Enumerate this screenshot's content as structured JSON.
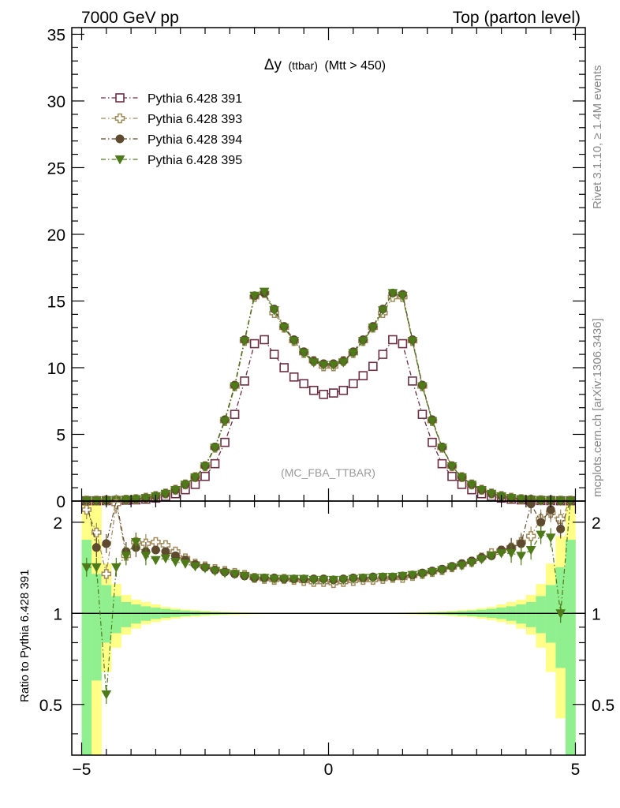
{
  "header": {
    "left": "7000 GeV pp",
    "right": "Top (parton level)"
  },
  "side_text": {
    "upper": "Rivet 3.1.10, ≥ 1.4M events",
    "lower": "mcplots.cern.ch [arXiv:1306.3436]"
  },
  "chart_data": [
    {
      "type": "line",
      "title": "Δy (ttbar) (Mtt > 450)",
      "title_main": "Δy",
      "title_small": "(ttbar)",
      "title_rest": "(Mtt > 450)",
      "watermark": "(MC_FBA_TTBAR)",
      "xlim": [
        -5.2,
        5.2
      ],
      "ylim": [
        0,
        35.5
      ],
      "yticks": [
        0,
        5,
        10,
        15,
        20,
        25,
        30,
        35
      ],
      "ytick_labels": [
        "0",
        "5",
        "10",
        "15",
        "20",
        "25",
        "30",
        "35"
      ],
      "legend_position": "top-left",
      "x": [
        -4.9,
        -4.7,
        -4.5,
        -4.3,
        -4.1,
        -3.9,
        -3.7,
        -3.5,
        -3.3,
        -3.1,
        -2.9,
        -2.7,
        -2.5,
        -2.3,
        -2.1,
        -1.9,
        -1.7,
        -1.5,
        -1.3,
        -1.1,
        -0.9,
        -0.7,
        -0.5,
        -0.3,
        -0.1,
        0.1,
        0.3,
        0.5,
        0.7,
        0.9,
        1.1,
        1.3,
        1.5,
        1.7,
        1.9,
        2.1,
        2.3,
        2.5,
        2.7,
        2.9,
        3.1,
        3.3,
        3.5,
        3.7,
        3.9,
        4.1,
        4.3,
        4.5,
        4.7,
        4.9
      ],
      "series": [
        {
          "name": "Pythia 6.428 391",
          "color": "#6b2f45",
          "marker": "open-square",
          "values": [
            0.02,
            0.02,
            0.03,
            0.04,
            0.06,
            0.09,
            0.14,
            0.22,
            0.35,
            0.55,
            0.85,
            1.25,
            1.85,
            2.8,
            4.4,
            6.5,
            9.0,
            11.8,
            12.1,
            11.0,
            10.0,
            9.3,
            8.8,
            8.3,
            8.0,
            8.1,
            8.3,
            8.8,
            9.4,
            10.1,
            11.0,
            12.1,
            11.8,
            9.0,
            6.5,
            4.4,
            2.8,
            1.85,
            1.25,
            0.85,
            0.55,
            0.35,
            0.22,
            0.14,
            0.09,
            0.06,
            0.04,
            0.03,
            0.02,
            0.02
          ]
        },
        {
          "name": "Pythia 6.428 393",
          "color": "#a08a5a",
          "marker": "open-cross",
          "values": [
            0.04,
            0.04,
            0.05,
            0.07,
            0.1,
            0.15,
            0.25,
            0.38,
            0.57,
            0.85,
            1.25,
            1.8,
            2.6,
            4.0,
            6.0,
            8.6,
            12.0,
            15.3,
            15.6,
            14.1,
            13.0,
            12.0,
            11.1,
            10.5,
            10.1,
            10.1,
            10.5,
            11.1,
            12.0,
            13.0,
            14.1,
            15.3,
            15.3,
            12.0,
            8.6,
            6.0,
            4.0,
            2.6,
            1.8,
            1.25,
            0.85,
            0.57,
            0.38,
            0.25,
            0.15,
            0.1,
            0.07,
            0.05,
            0.04,
            0.04
          ]
        },
        {
          "name": "Pythia 6.428 394",
          "color": "#5e4a2e",
          "marker": "filled-circle",
          "values": [
            0.03,
            0.03,
            0.05,
            0.07,
            0.1,
            0.15,
            0.24,
            0.37,
            0.56,
            0.84,
            1.25,
            1.8,
            2.65,
            4.05,
            6.1,
            8.7,
            12.1,
            15.4,
            15.6,
            14.4,
            13.1,
            12.1,
            11.2,
            10.5,
            10.3,
            10.3,
            10.5,
            11.2,
            12.1,
            13.1,
            14.4,
            15.6,
            15.5,
            12.1,
            8.7,
            6.1,
            4.05,
            2.65,
            1.8,
            1.25,
            0.84,
            0.56,
            0.37,
            0.24,
            0.15,
            0.1,
            0.07,
            0.05,
            0.03,
            0.03
          ]
        },
        {
          "name": "Pythia 6.428 395",
          "color": "#4e7a1a",
          "marker": "filled-triangle-down",
          "values": [
            0.03,
            0.03,
            0.04,
            0.06,
            0.1,
            0.15,
            0.23,
            0.36,
            0.55,
            0.83,
            1.23,
            1.78,
            2.6,
            4.0,
            6.0,
            8.6,
            12.0,
            15.4,
            15.7,
            14.3,
            13.0,
            12.0,
            11.1,
            10.4,
            10.2,
            10.2,
            10.4,
            11.1,
            12.0,
            13.0,
            14.3,
            15.6,
            15.4,
            12.0,
            8.6,
            6.0,
            4.0,
            2.6,
            1.78,
            1.23,
            0.83,
            0.55,
            0.36,
            0.23,
            0.15,
            0.1,
            0.06,
            0.04,
            0.03,
            0.03
          ]
        }
      ]
    },
    {
      "type": "line",
      "ylabel": "Ratio to Pythia 6.428 391",
      "xlim": [
        -5.2,
        5.2
      ],
      "ylim": [
        0.34,
        2.35
      ],
      "log_y": true,
      "yticks": [
        0.5,
        1,
        2
      ],
      "ytick_labels": [
        "0.5",
        "1",
        "2"
      ],
      "xticks": [
        -5,
        0,
        5
      ],
      "xtick_labels": [
        "−5",
        "0",
        "5"
      ],
      "reference": 1,
      "bands": {
        "yellow_color": "#ffff88",
        "green_color": "#90f090",
        "yellow_upper": [
          2.35,
          2.35,
          1.46,
          1.25,
          1.15,
          1.11,
          1.09,
          1.07,
          1.05,
          1.04,
          1.03,
          1.025,
          1.02,
          1.015,
          1.012,
          1.01,
          1.008,
          1.006,
          1.005,
          1.004,
          1.004,
          1.004,
          1.004,
          1.004,
          1.004,
          1.004,
          1.004,
          1.004,
          1.004,
          1.004,
          1.004,
          1.005,
          1.006,
          1.008,
          1.01,
          1.012,
          1.015,
          1.02,
          1.025,
          1.03,
          1.04,
          1.05,
          1.07,
          1.09,
          1.11,
          1.15,
          1.25,
          1.46,
          1.8,
          2.35
        ],
        "yellow_lower": [
          0.34,
          0.34,
          0.64,
          0.77,
          0.85,
          0.89,
          0.92,
          0.935,
          0.95,
          0.96,
          0.97,
          0.975,
          0.98,
          0.985,
          0.988,
          0.99,
          0.992,
          0.994,
          0.995,
          0.996,
          0.996,
          0.996,
          0.996,
          0.996,
          0.996,
          0.996,
          0.996,
          0.996,
          0.996,
          0.996,
          0.996,
          0.995,
          0.994,
          0.992,
          0.99,
          0.988,
          0.985,
          0.98,
          0.975,
          0.97,
          0.96,
          0.95,
          0.935,
          0.92,
          0.89,
          0.85,
          0.77,
          0.64,
          0.45,
          0.34
        ],
        "green_upper": [
          1.75,
          1.35,
          1.24,
          1.14,
          1.09,
          1.07,
          1.055,
          1.045,
          1.035,
          1.028,
          1.022,
          1.017,
          1.013,
          1.01,
          1.008,
          1.006,
          1.005,
          1.004,
          1.003,
          1.003,
          1.003,
          1.003,
          1.003,
          1.003,
          1.003,
          1.003,
          1.003,
          1.003,
          1.003,
          1.003,
          1.003,
          1.003,
          1.004,
          1.005,
          1.006,
          1.008,
          1.01,
          1.013,
          1.017,
          1.022,
          1.028,
          1.035,
          1.045,
          1.055,
          1.07,
          1.09,
          1.14,
          1.24,
          1.42,
          1.75
        ],
        "green_lower": [
          0.34,
          0.6,
          0.8,
          0.86,
          0.9,
          0.925,
          0.945,
          0.958,
          0.967,
          0.974,
          0.979,
          0.984,
          0.988,
          0.991,
          0.993,
          0.995,
          0.996,
          0.997,
          0.997,
          0.997,
          0.997,
          0.997,
          0.997,
          0.997,
          0.997,
          0.997,
          0.997,
          0.997,
          0.997,
          0.997,
          0.997,
          0.997,
          0.997,
          0.996,
          0.995,
          0.993,
          0.991,
          0.988,
          0.984,
          0.979,
          0.974,
          0.967,
          0.958,
          0.945,
          0.925,
          0.9,
          0.86,
          0.8,
          0.66,
          0.34
        ]
      },
      "x": [
        -4.9,
        -4.7,
        -4.5,
        -4.3,
        -4.1,
        -3.9,
        -3.7,
        -3.5,
        -3.3,
        -3.1,
        -2.9,
        -2.7,
        -2.5,
        -2.3,
        -2.1,
        -1.9,
        -1.7,
        -1.5,
        -1.3,
        -1.1,
        -0.9,
        -0.7,
        -0.5,
        -0.3,
        -0.1,
        0.1,
        0.3,
        0.5,
        0.7,
        0.9,
        1.1,
        1.3,
        1.5,
        1.7,
        1.9,
        2.1,
        2.3,
        2.5,
        2.7,
        2.9,
        3.1,
        3.3,
        3.5,
        3.7,
        3.9,
        4.1,
        4.3,
        4.5,
        4.7,
        4.9
      ],
      "series": [
        {
          "name": "Pythia 6.428 393",
          "color": "#a08a5a",
          "marker": "open-cross",
          "values": [
            2.2,
            1.85,
            1.35,
            2.3,
            1.55,
            1.72,
            1.7,
            1.72,
            1.68,
            1.6,
            1.52,
            1.46,
            1.43,
            1.4,
            1.38,
            1.36,
            1.34,
            1.31,
            1.3,
            1.29,
            1.3,
            1.29,
            1.28,
            1.27,
            1.27,
            1.26,
            1.27,
            1.28,
            1.29,
            1.29,
            1.3,
            1.31,
            1.31,
            1.33,
            1.35,
            1.37,
            1.39,
            1.42,
            1.45,
            1.48,
            1.53,
            1.58,
            1.61,
            1.65,
            1.72,
            1.8,
            2.05,
            2.15,
            2.05,
            2.35
          ]
        },
        {
          "name": "Pythia 6.428 394",
          "color": "#5e4a2e",
          "marker": "filled-circle",
          "values": [
            2.35,
            1.65,
            1.7,
            2.35,
            1.6,
            1.65,
            1.6,
            1.62,
            1.6,
            1.55,
            1.5,
            1.45,
            1.42,
            1.39,
            1.37,
            1.35,
            1.33,
            1.31,
            1.31,
            1.31,
            1.3,
            1.3,
            1.3,
            1.3,
            1.3,
            1.29,
            1.3,
            1.31,
            1.31,
            1.32,
            1.32,
            1.32,
            1.33,
            1.34,
            1.36,
            1.38,
            1.4,
            1.43,
            1.46,
            1.49,
            1.53,
            1.55,
            1.62,
            1.65,
            1.7,
            2.3,
            2.0,
            2.2,
            1.9,
            2.35
          ]
        },
        {
          "name": "Pythia 6.428 395",
          "color": "#4e7a1a",
          "marker": "filled-triangle-down",
          "values": [
            1.42,
            1.42,
            0.54,
            1.42,
            1.55,
            1.72,
            1.55,
            1.5,
            1.52,
            1.48,
            1.46,
            1.43,
            1.41,
            1.38,
            1.36,
            1.35,
            1.33,
            1.31,
            1.31,
            1.3,
            1.3,
            1.3,
            1.3,
            1.29,
            1.29,
            1.29,
            1.29,
            1.3,
            1.31,
            1.31,
            1.32,
            1.32,
            1.33,
            1.34,
            1.35,
            1.37,
            1.39,
            1.42,
            1.44,
            1.47,
            1.51,
            1.55,
            1.58,
            1.58,
            1.55,
            1.62,
            1.82,
            1.78,
            1.0,
            2.35
          ]
        }
      ]
    }
  ]
}
